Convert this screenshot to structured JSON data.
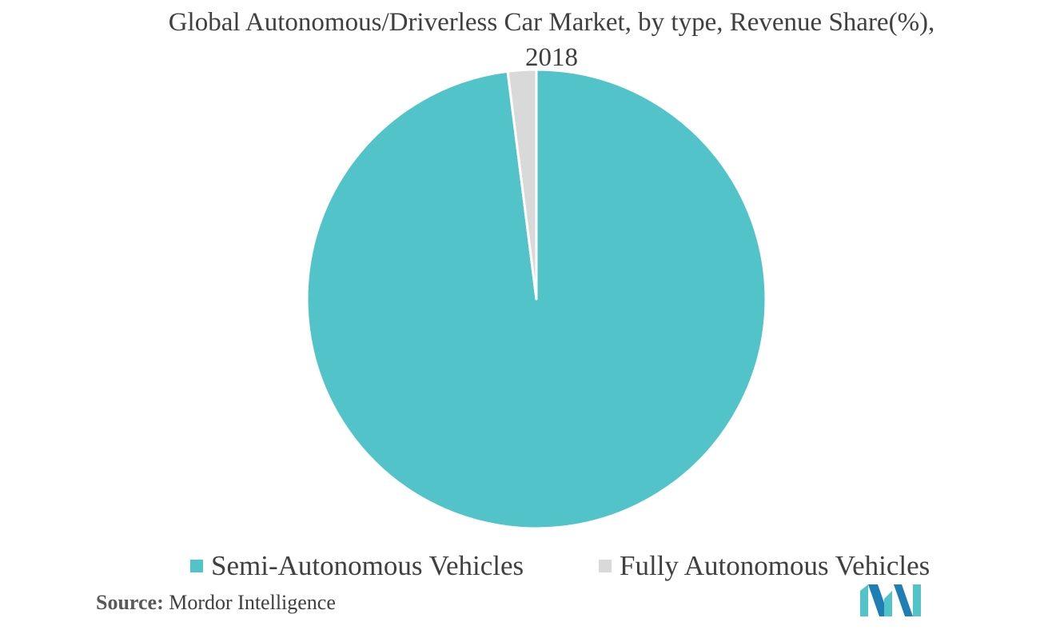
{
  "chart_data": {
    "type": "pie",
    "title": "Global Autonomous/Driverless Car Market, by type, Revenue Share(%), 2018",
    "slices": [
      {
        "label": "Semi-Autonomous Vehicles",
        "value": 98,
        "color": "#52C4C9"
      },
      {
        "label": "Fully Autonomous Vehicles",
        "value": 2,
        "color": "#D9D9D9"
      }
    ],
    "start_angle": "12 o'clock",
    "direction": "clockwise",
    "legend_position": "bottom"
  },
  "legend": {
    "items": [
      {
        "label": "Semi-Autonomous Vehicles",
        "color": "#52C4C9"
      },
      {
        "label": "Fully Autonomous Vehicles",
        "color": "#D9D9D9"
      }
    ]
  },
  "source": {
    "label": "Source:",
    "text": "Mordor Intelligence"
  },
  "logo": {
    "icon": "mordor-intelligence-logo-icon",
    "colors": [
      "#1F7FB5",
      "#52C4C9"
    ]
  }
}
